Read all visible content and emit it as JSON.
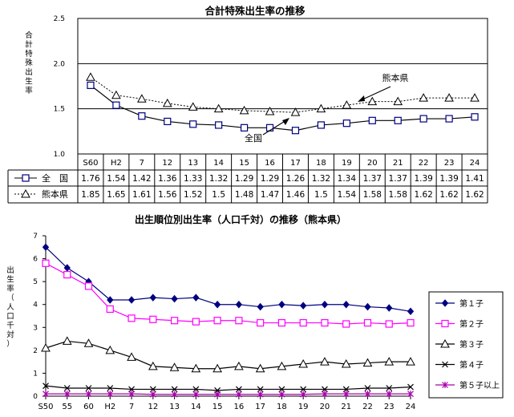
{
  "chart_data": [
    {
      "type": "line",
      "title": "合計特殊出生率の推移",
      "ylabel": "合計特殊出生率",
      "ylim": [
        1.0,
        2.5
      ],
      "yticks": [
        "1.0",
        "1.5",
        "2.0",
        "2.5"
      ],
      "grid": "horizontal",
      "categories": [
        "S60",
        "H2",
        "7",
        "12",
        "13",
        "14",
        "15",
        "16",
        "17",
        "18",
        "19",
        "20",
        "21",
        "22",
        "23",
        "24"
      ],
      "series": [
        {
          "name": "全　国",
          "label": "全国",
          "marker": "square",
          "line": "solid",
          "display": [
            "1.76",
            "1.54",
            "1.42",
            "1.36",
            "1.33",
            "1.32",
            "1.29",
            "1.29",
            "1.26",
            "1.32",
            "1.34",
            "1.37",
            "1.37",
            "1.39",
            "1.39",
            "1.41"
          ],
          "values": [
            1.76,
            1.54,
            1.42,
            1.36,
            1.33,
            1.32,
            1.29,
            1.29,
            1.26,
            1.32,
            1.34,
            1.37,
            1.37,
            1.39,
            1.39,
            1.41
          ]
        },
        {
          "name": "熊本県",
          "label": "熊本県",
          "marker": "triangle",
          "line": "dotted",
          "display": [
            "1.85",
            "1.65",
            "1.61",
            "1.56",
            "1.52",
            "1.5",
            "1.48",
            "1.47",
            "1.46",
            "1.5",
            "1.54",
            "1.58",
            "1.58",
            "1.62",
            "1.62",
            "1.62"
          ],
          "values": [
            1.85,
            1.65,
            1.61,
            1.56,
            1.52,
            1.5,
            1.48,
            1.47,
            1.46,
            1.5,
            1.54,
            1.58,
            1.58,
            1.62,
            1.62,
            1.62
          ]
        }
      ]
    },
    {
      "type": "line",
      "title": "出生順位別出生率（人口千対）の推移（熊本県）",
      "ylabel": "出生率（人口千対）",
      "ylim": [
        0,
        7
      ],
      "yticks": [
        "0",
        "1",
        "2",
        "3",
        "4",
        "5",
        "6",
        "7"
      ],
      "grid": "none",
      "legend": "right",
      "categories": [
        "S50",
        "55",
        "60",
        "H2",
        "7",
        "12",
        "13",
        "14",
        "15",
        "16",
        "17",
        "18",
        "19",
        "20",
        "21",
        "22",
        "23",
        "24"
      ],
      "series": [
        {
          "name": "第１子",
          "color": "#000080",
          "marker": "diamond",
          "values": [
            6.5,
            5.6,
            5.0,
            4.2,
            4.2,
            4.3,
            4.25,
            4.3,
            4.0,
            4.0,
            3.9,
            4.0,
            3.95,
            4.0,
            4.0,
            3.9,
            3.85,
            3.7
          ]
        },
        {
          "name": "第２子",
          "color": "#ff00ff",
          "marker": "square",
          "values": [
            5.8,
            5.3,
            4.8,
            3.8,
            3.4,
            3.35,
            3.3,
            3.25,
            3.3,
            3.3,
            3.2,
            3.2,
            3.2,
            3.2,
            3.15,
            3.2,
            3.15,
            3.2
          ]
        },
        {
          "name": "第３子",
          "color": "#000000",
          "marker": "triangle",
          "values": [
            2.1,
            2.4,
            2.3,
            2.0,
            1.7,
            1.3,
            1.25,
            1.2,
            1.2,
            1.3,
            1.2,
            1.3,
            1.4,
            1.5,
            1.4,
            1.45,
            1.5,
            1.5
          ]
        },
        {
          "name": "第４子",
          "color": "#000000",
          "marker": "x",
          "values": [
            0.45,
            0.35,
            0.35,
            0.35,
            0.3,
            0.3,
            0.3,
            0.3,
            0.25,
            0.3,
            0.3,
            0.3,
            0.3,
            0.3,
            0.3,
            0.35,
            0.35,
            0.4
          ]
        },
        {
          "name": "第５子以上",
          "color": "#aa00aa",
          "marker": "star",
          "values": [
            0.1,
            0.1,
            0.1,
            0.1,
            0.1,
            0.08,
            0.08,
            0.08,
            0.08,
            0.08,
            0.08,
            0.08,
            0.08,
            0.1,
            0.1,
            0.1,
            0.1,
            0.1
          ]
        }
      ]
    }
  ]
}
